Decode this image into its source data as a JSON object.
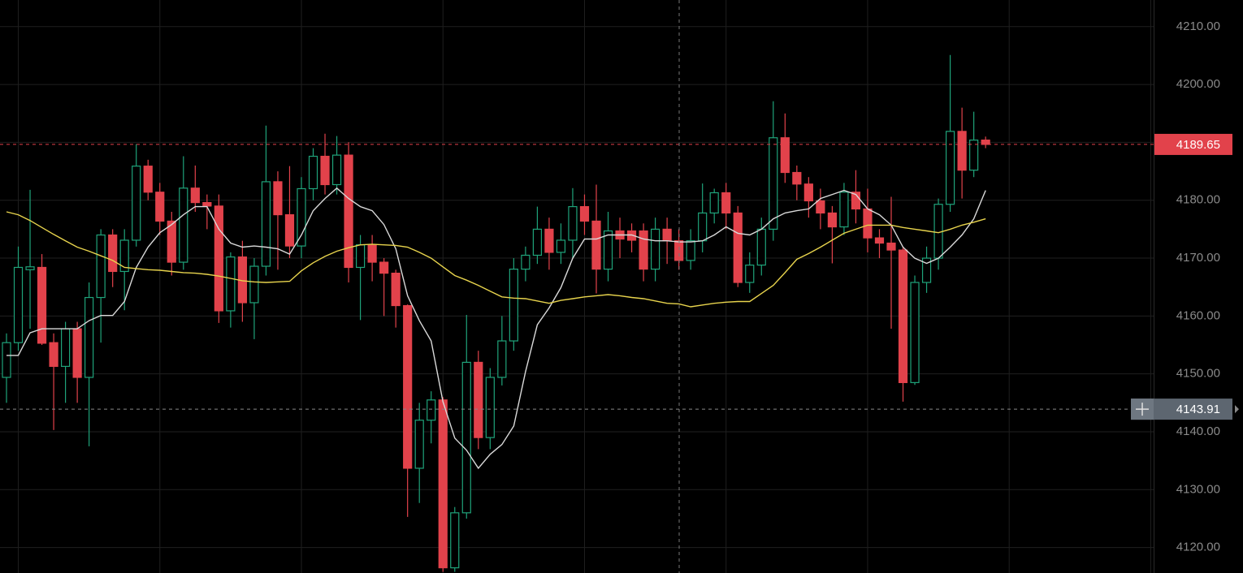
{
  "chart_data": {
    "type": "candlestick",
    "up_color": "#1fa37a",
    "down_color": "#e2424b",
    "grid": true,
    "ylim": [
      4115.6,
      4214.6
    ],
    "yticks": [
      {
        "value": 4120,
        "label": "4120.00"
      },
      {
        "value": 4130,
        "label": "4130.00"
      },
      {
        "value": 4140,
        "label": "4140.00"
      },
      {
        "value": 4150,
        "label": "4150.00"
      },
      {
        "value": 4160,
        "label": "4160.00"
      },
      {
        "value": 4170,
        "label": "4170.00"
      },
      {
        "value": 4180,
        "label": "4180.00"
      },
      {
        "value": 4190,
        "label": "4190.00"
      },
      {
        "value": 4200,
        "label": "4200.00"
      },
      {
        "value": 4210,
        "label": "4210.00"
      }
    ],
    "open": [
      4149.4,
      4155.4,
      4168,
      4168.4,
      4155.4,
      4151.3,
      4157.8,
      4149.4,
      4163.2,
      4174,
      4167.7,
      4173.1,
      4185.9,
      4181.4,
      4176.4,
      4169.3,
      4182.1,
      4179.6,
      4179,
      4160.9,
      4170.2,
      4162.3,
      4168.6,
      4183.2,
      4177.5,
      4172.1,
      4182,
      4187.6,
      4182.7,
      4187.8,
      4168.4,
      4172.3,
      4169.3,
      4167.4,
      4161.8,
      4133.7,
      4142,
      4145.5,
      4116.5,
      4126,
      4152,
      4139,
      4149.4,
      4155.7,
      4168.1,
      4170.5,
      4175,
      4171,
      4173.1,
      4178.9,
      4176.4,
      4168.1,
      4174.7,
      4174.7,
      4174.7,
      4168.1,
      4175,
      4173,
      4169.6,
      4173,
      4177.8,
      4181.3,
      4177.8,
      4165.8,
      4168.8,
      4175,
      4190.8,
      4184.8,
      4182.8,
      4179.9,
      4177.8,
      4175.4,
      4181.4,
      4178.5,
      4173.5,
      4172.6,
      4171.4,
      4148.5,
      4165.8,
      4170,
      4179.3,
      4191.9,
      4185.2,
      4190.4
    ],
    "high": [
      4157,
      4172,
      4181.8,
      4170.7,
      4157,
      4159,
      4159,
      4165.8,
      4175,
      4175,
      4175,
      4189.7,
      4187,
      4183,
      4178,
      4187.6,
      4186,
      4181,
      4181,
      4171,
      4173,
      4170,
      4192.9,
      4185,
      4185.9,
      4184,
      4189,
      4191.5,
      4191.1,
      4190,
      4174,
      4174,
      4170,
      4168,
      4162,
      4145,
      4147,
      4146,
      4127,
      4160.2,
      4154,
      4151,
      4160,
      4170,
      4172,
      4178.9,
      4177,
      4176,
      4182.1,
      4181,
      4182.7,
      4178,
      4177,
      4176,
      4176,
      4177,
      4177,
      4175,
      4175,
      4182.9,
      4182,
      4183,
      4179,
      4171,
      4177,
      4197.1,
      4195,
      4186,
      4184,
      4182,
      4179,
      4183,
      4185.2,
      4182,
      4175,
      4180.6,
      4172,
      4167,
      4172,
      4180.3,
      4205.1,
      4196,
      4195.3,
      4191
    ],
    "low": [
      4145,
      4154,
      4157.8,
      4155,
      4140.3,
      4145,
      4145,
      4137.5,
      4155.4,
      4165,
      4161,
      4172,
      4180,
      4174,
      4167,
      4168,
      4178,
      4175,
      4158.8,
      4158,
      4159,
      4156,
      4167,
      4168,
      4170,
      4170,
      4180,
      4181,
      4181,
      4165.8,
      4159.3,
      4166,
      4160,
      4158,
      4125.3,
      4127.7,
      4138,
      4115.8,
      4115.8,
      4125,
      4137,
      4137,
      4148,
      4154,
      4166,
      4169,
      4168,
      4169,
      4170,
      4174,
      4163.9,
      4166,
      4170,
      4171,
      4166,
      4166,
      4169,
      4168,
      4168,
      4171,
      4176,
      4175,
      4165,
      4164,
      4167,
      4173,
      4183,
      4180,
      4177,
      4175,
      4169.1,
      4174,
      4176,
      4171,
      4170,
      4157.8,
      4145.2,
      4148.1,
      4164,
      4168,
      4178,
      4180.3,
      4184,
      4189
    ],
    "close": [
      4155.4,
      4168.4,
      4168.5,
      4155.3,
      4151.3,
      4157.8,
      4149.4,
      4163.2,
      4174,
      4167.7,
      4173.1,
      4185.9,
      4181.4,
      4176.4,
      4169.3,
      4182.1,
      4179.6,
      4179,
      4160.9,
      4170.2,
      4162.3,
      4168.6,
      4183.2,
      4177.5,
      4172.1,
      4182,
      4187.6,
      4182.7,
      4187.8,
      4168.4,
      4172.3,
      4169.3,
      4167.4,
      4161.8,
      4133.7,
      4142,
      4145.5,
      4116.5,
      4126,
      4152,
      4139,
      4149.4,
      4155.7,
      4168.1,
      4170.5,
      4175,
      4171,
      4173.1,
      4178.9,
      4176.4,
      4168.1,
      4174.7,
      4173.3,
      4173.1,
      4168.1,
      4175,
      4173,
      4169.6,
      4173,
      4177.8,
      4181.3,
      4177.8,
      4165.8,
      4168.8,
      4175,
      4190.8,
      4184.8,
      4182.8,
      4179.9,
      4177.8,
      4175.4,
      4181.4,
      4178.5,
      4173.5,
      4172.6,
      4171.4,
      4148.5,
      4165.8,
      4170,
      4179.3,
      4191.9,
      4185.2,
      4190.4,
      4189.65
    ],
    "moving_averages": [
      {
        "color": "#d9d9d9",
        "values": [
          4153.2,
          4153.2,
          4157.1,
          4157.8,
          4157.8,
          4157.8,
          4157.8,
          4159.2,
          4160.1,
          4160.1,
          4162.5,
          4168.4,
          4171.9,
          4174.4,
          4175.8,
          4177.5,
          4178.9,
          4178.9,
          4175,
          4172.6,
          4171.9,
          4172.1,
          4171.9,
          4171.6,
          4170.7,
          4174,
          4178.2,
          4180.3,
          4182.1,
          4180.3,
          4178.9,
          4178.2,
          4175.8,
          4171.6,
          4163.5,
          4159.2,
          4155.7,
          4145.2,
          4138.9,
          4136.8,
          4133.7,
          4136.1,
          4137.8,
          4141,
          4150.4,
          4158.5,
          4161.4,
          4164.9,
          4170,
          4173.3,
          4173.3,
          4174,
          4174,
          4174,
          4173.3,
          4173,
          4173,
          4172.8,
          4172.8,
          4173,
          4174,
          4175.4,
          4174.3,
          4174,
          4175,
          4176.8,
          4177.8,
          4178.2,
          4178.5,
          4180.3,
          4181,
          4181.7,
          4181,
          4178.5,
          4177.5,
          4175.7,
          4171.9,
          4170,
          4169.1,
          4170,
          4171.9,
          4174,
          4176.8,
          4181.7
        ]
      },
      {
        "color": "#e8d44d",
        "values": [
          4178,
          4177.5,
          4176.5,
          4175.3,
          4174.1,
          4173,
          4171.9,
          4171.2,
          4170.4,
          4169.6,
          4168.4,
          4168.2,
          4168,
          4167.9,
          4167.7,
          4167.5,
          4167.4,
          4167.2,
          4166.9,
          4166.5,
          4166.1,
          4165.9,
          4165.8,
          4165.9,
          4166,
          4167.8,
          4169.2,
          4170.3,
          4171.2,
          4171.8,
          4172.3,
          4172.4,
          4172.3,
          4172.2,
          4171.9,
          4171,
          4170,
          4168.5,
          4167,
          4166.2,
          4165.3,
          4164.3,
          4163.3,
          4163.1,
          4163,
          4162.6,
          4162.2,
          4162.7,
          4163,
          4163.3,
          4163.5,
          4163.7,
          4163.5,
          4163.2,
          4163,
          4162.6,
          4162.2,
          4162.1,
          4161.6,
          4161.9,
          4162.2,
          4162.4,
          4162.5,
          4162.5,
          4163.9,
          4165.3,
          4167.5,
          4169.8,
          4170.8,
          4171.9,
          4173.1,
          4174.3,
          4175,
          4175.7,
          4175.7,
          4175.7,
          4175.3,
          4175,
          4174.7,
          4174.4,
          4175,
          4175.7,
          4176.2,
          4176.8
        ]
      }
    ],
    "last_price": 4189.65,
    "last_price_color": "#e2424b",
    "crosshair_price": 4143.91
  }
}
